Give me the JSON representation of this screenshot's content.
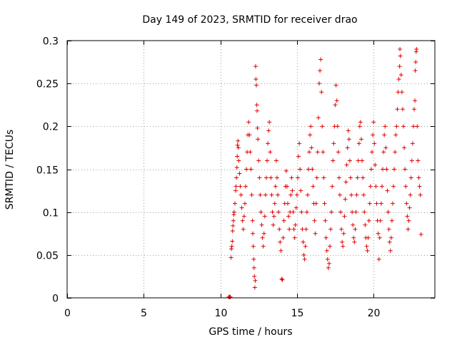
{
  "chart_data": {
    "type": "scatter",
    "title": "Day 149 of 2023, SRMTID for receiver drao",
    "xlabel": "GPS time / hours",
    "ylabel": "SRMTID / TECUs",
    "xlim": [
      0,
      24
    ],
    "ylim": [
      0,
      0.3
    ],
    "xticks": [
      0,
      5,
      10,
      15,
      20
    ],
    "xtick_labels": [
      "0",
      "5",
      "10",
      "15",
      "20"
    ],
    "yticks": [
      0,
      0.05,
      0.1,
      0.15,
      0.2,
      0.25,
      0.3
    ],
    "ytick_labels": [
      "0",
      "0.05",
      "0.1",
      "0.15",
      "0.2",
      "0.25",
      "0.3"
    ],
    "grid": true,
    "marker": "+",
    "color": "#e00000",
    "series": [
      {
        "name": "SRMTID",
        "points": [
          [
            10.55,
            0.001
          ],
          [
            10.6,
            0.001
          ],
          [
            10.65,
            0.001
          ],
          [
            10.7,
            0.047
          ],
          [
            10.72,
            0.057
          ],
          [
            10.75,
            0.06
          ],
          [
            10.78,
            0.066
          ],
          [
            10.8,
            0.078
          ],
          [
            10.82,
            0.084
          ],
          [
            10.85,
            0.09
          ],
          [
            10.88,
            0.097
          ],
          [
            10.9,
            0.1
          ],
          [
            10.95,
            0.11
          ],
          [
            11.0,
            0.125
          ],
          [
            11.02,
            0.13
          ],
          [
            11.05,
            0.14
          ],
          [
            11.08,
            0.152
          ],
          [
            11.1,
            0.165
          ],
          [
            11.12,
            0.178
          ],
          [
            11.15,
            0.183
          ],
          [
            11.18,
            0.175
          ],
          [
            11.2,
            0.16
          ],
          [
            11.25,
            0.145
          ],
          [
            11.3,
            0.13
          ],
          [
            11.35,
            0.12
          ],
          [
            11.4,
            0.105
          ],
          [
            11.45,
            0.09
          ],
          [
            11.5,
            0.08
          ],
          [
            11.55,
            0.095
          ],
          [
            11.6,
            0.11
          ],
          [
            11.65,
            0.13
          ],
          [
            11.7,
            0.15
          ],
          [
            11.75,
            0.17
          ],
          [
            11.8,
            0.19
          ],
          [
            11.85,
            0.205
          ],
          [
            11.9,
            0.19
          ],
          [
            11.95,
            0.17
          ],
          [
            12.0,
            0.15
          ],
          [
            12.05,
            0.12
          ],
          [
            12.1,
            0.09
          ],
          [
            12.12,
            0.075
          ],
          [
            12.15,
            0.06
          ],
          [
            12.18,
            0.045
          ],
          [
            12.2,
            0.035
          ],
          [
            12.22,
            0.025
          ],
          [
            12.25,
            0.012
          ],
          [
            12.28,
            0.02
          ],
          [
            12.3,
            0.27
          ],
          [
            12.32,
            0.255
          ],
          [
            12.35,
            0.248
          ],
          [
            12.38,
            0.225
          ],
          [
            12.4,
            0.218
          ],
          [
            12.42,
            0.198
          ],
          [
            12.45,
            0.185
          ],
          [
            12.5,
            0.16
          ],
          [
            12.55,
            0.14
          ],
          [
            12.6,
            0.12
          ],
          [
            12.65,
            0.1
          ],
          [
            12.7,
            0.085
          ],
          [
            12.75,
            0.07
          ],
          [
            12.8,
            0.06
          ],
          [
            12.85,
            0.075
          ],
          [
            12.9,
            0.095
          ],
          [
            12.95,
            0.12
          ],
          [
            13.0,
            0.14
          ],
          [
            13.05,
            0.16
          ],
          [
            13.1,
            0.18
          ],
          [
            13.15,
            0.195
          ],
          [
            13.2,
            0.205
          ],
          [
            13.25,
            0.17
          ],
          [
            13.3,
            0.14
          ],
          [
            13.35,
            0.12
          ],
          [
            13.4,
            0.1
          ],
          [
            13.45,
            0.085
          ],
          [
            13.5,
            0.095
          ],
          [
            13.55,
            0.11
          ],
          [
            13.6,
            0.13
          ],
          [
            13.65,
            0.16
          ],
          [
            13.7,
            0.14
          ],
          [
            13.75,
            0.12
          ],
          [
            13.8,
            0.1
          ],
          [
            13.85,
            0.08
          ],
          [
            13.9,
            0.065
          ],
          [
            13.95,
            0.055
          ],
          [
            14.0,
            0.022
          ],
          [
            14.05,
            0.021
          ],
          [
            14.1,
            0.07
          ],
          [
            14.15,
            0.09
          ],
          [
            14.2,
            0.11
          ],
          [
            14.25,
            0.13
          ],
          [
            14.3,
            0.148
          ],
          [
            14.35,
            0.13
          ],
          [
            14.4,
            0.11
          ],
          [
            14.45,
            0.095
          ],
          [
            14.5,
            0.08
          ],
          [
            14.55,
            0.1
          ],
          [
            14.6,
            0.12
          ],
          [
            14.65,
            0.14
          ],
          [
            14.7,
            0.125
          ],
          [
            14.75,
            0.1
          ],
          [
            14.8,
            0.08
          ],
          [
            14.85,
            0.07
          ],
          [
            14.9,
            0.085
          ],
          [
            14.95,
            0.105
          ],
          [
            15.0,
            0.12
          ],
          [
            15.05,
            0.14
          ],
          [
            15.1,
            0.165
          ],
          [
            15.15,
            0.18
          ],
          [
            15.2,
            0.15
          ],
          [
            15.25,
            0.125
          ],
          [
            15.3,
            0.1
          ],
          [
            15.35,
            0.08
          ],
          [
            15.4,
            0.065
          ],
          [
            15.45,
            0.05
          ],
          [
            15.5,
            0.045
          ],
          [
            15.55,
            0.06
          ],
          [
            15.6,
            0.08
          ],
          [
            15.65,
            0.1
          ],
          [
            15.7,
            0.12
          ],
          [
            15.75,
            0.15
          ],
          [
            15.8,
            0.17
          ],
          [
            15.85,
            0.19
          ],
          [
            15.9,
            0.2
          ],
          [
            15.95,
            0.175
          ],
          [
            16.0,
            0.15
          ],
          [
            16.05,
            0.13
          ],
          [
            16.1,
            0.11
          ],
          [
            16.15,
            0.09
          ],
          [
            16.2,
            0.075
          ],
          [
            16.25,
            0.11
          ],
          [
            16.3,
            0.14
          ],
          [
            16.35,
            0.17
          ],
          [
            16.4,
            0.21
          ],
          [
            16.45,
            0.25
          ],
          [
            16.5,
            0.265
          ],
          [
            16.55,
            0.278
          ],
          [
            16.6,
            0.24
          ],
          [
            16.65,
            0.2
          ],
          [
            16.7,
            0.17
          ],
          [
            16.75,
            0.14
          ],
          [
            16.8,
            0.11
          ],
          [
            16.85,
            0.09
          ],
          [
            16.9,
            0.07
          ],
          [
            16.95,
            0.055
          ],
          [
            17.0,
            0.045
          ],
          [
            17.05,
            0.035
          ],
          [
            17.1,
            0.04
          ],
          [
            17.15,
            0.06
          ],
          [
            17.2,
            0.08
          ],
          [
            17.25,
            0.1
          ],
          [
            17.3,
            0.13
          ],
          [
            17.35,
            0.16
          ],
          [
            17.4,
            0.18
          ],
          [
            17.45,
            0.2
          ],
          [
            17.5,
            0.225
          ],
          [
            17.55,
            0.248
          ],
          [
            17.6,
            0.23
          ],
          [
            17.65,
            0.2
          ],
          [
            17.7,
            0.17
          ],
          [
            17.75,
            0.14
          ],
          [
            17.8,
            0.12
          ],
          [
            17.85,
            0.1
          ],
          [
            17.9,
            0.08
          ],
          [
            17.95,
            0.065
          ],
          [
            18.0,
            0.06
          ],
          [
            18.05,
            0.075
          ],
          [
            18.1,
            0.095
          ],
          [
            18.15,
            0.115
          ],
          [
            18.2,
            0.135
          ],
          [
            18.25,
            0.155
          ],
          [
            18.3,
            0.175
          ],
          [
            18.35,
            0.195
          ],
          [
            18.4,
            0.185
          ],
          [
            18.45,
            0.16
          ],
          [
            18.5,
            0.14
          ],
          [
            18.55,
            0.12
          ],
          [
            18.6,
            0.1
          ],
          [
            18.65,
            0.085
          ],
          [
            18.7,
            0.07
          ],
          [
            18.75,
            0.065
          ],
          [
            18.8,
            0.08
          ],
          [
            18.85,
            0.1
          ],
          [
            18.9,
            0.12
          ],
          [
            18.95,
            0.14
          ],
          [
            19.0,
            0.16
          ],
          [
            19.05,
            0.18
          ],
          [
            19.1,
            0.2
          ],
          [
            19.15,
            0.205
          ],
          [
            19.2,
            0.185
          ],
          [
            19.25,
            0.16
          ],
          [
            19.3,
            0.14
          ],
          [
            19.35,
            0.12
          ],
          [
            19.4,
            0.1
          ],
          [
            19.45,
            0.085
          ],
          [
            19.5,
            0.07
          ],
          [
            19.55,
            0.06
          ],
          [
            19.6,
            0.055
          ],
          [
            19.65,
            0.07
          ],
          [
            19.7,
            0.09
          ],
          [
            19.75,
            0.11
          ],
          [
            19.8,
            0.13
          ],
          [
            19.85,
            0.15
          ],
          [
            19.9,
            0.17
          ],
          [
            19.95,
            0.19
          ],
          [
            20.0,
            0.205
          ],
          [
            20.05,
            0.18
          ],
          [
            20.1,
            0.155
          ],
          [
            20.15,
            0.13
          ],
          [
            20.2,
            0.11
          ],
          [
            20.25,
            0.09
          ],
          [
            20.3,
            0.075
          ],
          [
            20.35,
            0.045
          ],
          [
            20.4,
            0.07
          ],
          [
            20.45,
            0.09
          ],
          [
            20.5,
            0.11
          ],
          [
            20.55,
            0.13
          ],
          [
            20.6,
            0.15
          ],
          [
            20.65,
            0.17
          ],
          [
            20.7,
            0.19
          ],
          [
            20.75,
            0.2
          ],
          [
            20.8,
            0.175
          ],
          [
            20.85,
            0.15
          ],
          [
            20.9,
            0.125
          ],
          [
            20.95,
            0.1
          ],
          [
            21.0,
            0.08
          ],
          [
            21.05,
            0.065
          ],
          [
            21.1,
            0.055
          ],
          [
            21.15,
            0.07
          ],
          [
            21.2,
            0.09
          ],
          [
            21.25,
            0.11
          ],
          [
            21.3,
            0.13
          ],
          [
            21.35,
            0.15
          ],
          [
            21.4,
            0.17
          ],
          [
            21.45,
            0.19
          ],
          [
            21.5,
            0.2
          ],
          [
            21.55,
            0.22
          ],
          [
            21.6,
            0.24
          ],
          [
            21.65,
            0.255
          ],
          [
            21.7,
            0.27
          ],
          [
            21.72,
            0.29
          ],
          [
            21.75,
            0.282
          ],
          [
            21.8,
            0.26
          ],
          [
            21.85,
            0.24
          ],
          [
            21.9,
            0.22
          ],
          [
            21.95,
            0.2
          ],
          [
            22.0,
            0.175
          ],
          [
            22.05,
            0.15
          ],
          [
            22.1,
            0.13
          ],
          [
            22.15,
            0.11
          ],
          [
            22.2,
            0.095
          ],
          [
            22.25,
            0.08
          ],
          [
            22.3,
            0.09
          ],
          [
            22.35,
            0.105
          ],
          [
            22.4,
            0.12
          ],
          [
            22.45,
            0.14
          ],
          [
            22.5,
            0.16
          ],
          [
            22.55,
            0.18
          ],
          [
            22.6,
            0.2
          ],
          [
            22.65,
            0.22
          ],
          [
            22.7,
            0.23
          ],
          [
            22.72,
            0.265
          ],
          [
            22.75,
            0.275
          ],
          [
            22.78,
            0.287
          ],
          [
            22.8,
            0.29
          ],
          [
            22.85,
            0.2
          ],
          [
            22.9,
            0.16
          ],
          [
            22.95,
            0.14
          ],
          [
            23.0,
            0.13
          ],
          [
            23.05,
            0.12
          ],
          [
            23.1,
            0.074
          ]
        ]
      }
    ]
  }
}
